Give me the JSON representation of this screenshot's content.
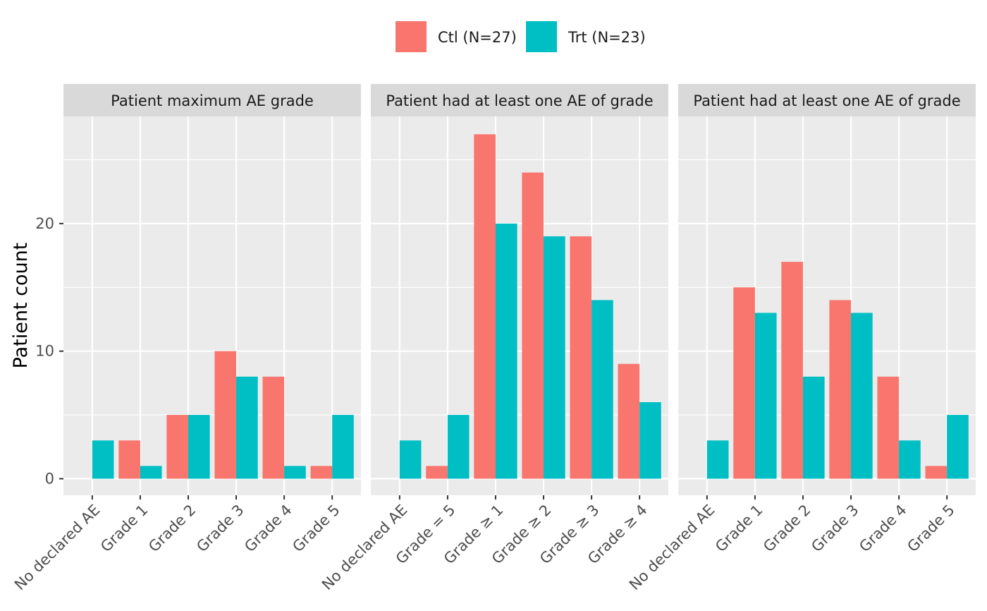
{
  "colors": {
    "ctl": "#F8766D",
    "trt": "#00BFC4",
    "panel_bg": "#EBEBEB",
    "strip_bg": "#D9D9D9",
    "grid": "#FFFFFF"
  },
  "legend": {
    "position": "top",
    "items": [
      "Ctl (N=27)",
      "Trt (N=23)"
    ]
  },
  "chart_data": {
    "type": "bar",
    "ylabel": "Patient count",
    "ylim": [
      -1.3,
      28.4
    ],
    "yticks": [
      0,
      10,
      20
    ],
    "grid": true,
    "series_names": [
      "Ctl (N=27)",
      "Trt (N=23)"
    ],
    "panels": [
      {
        "title": "Patient maximum AE grade",
        "categories": [
          "No declared AE",
          "Grade 1",
          "Grade 2",
          "Grade 3",
          "Grade 4",
          "Grade 5"
        ],
        "series": [
          {
            "name": "Ctl (N=27)",
            "values": [
              0,
              3,
              5,
              10,
              8,
              1
            ]
          },
          {
            "name": "Trt (N=23)",
            "values": [
              3,
              1,
              5,
              8,
              1,
              5
            ]
          }
        ]
      },
      {
        "title": "Patient had at least one AE of grade",
        "categories": [
          "No declared AE",
          "Grade = 5",
          "Grade ≥ 1",
          "Grade ≥ 2",
          "Grade ≥ 3",
          "Grade ≥ 4"
        ],
        "series": [
          {
            "name": "Ctl (N=27)",
            "values": [
              0,
              1,
              27,
              24,
              19,
              9
            ]
          },
          {
            "name": "Trt (N=23)",
            "values": [
              3,
              5,
              20,
              19,
              14,
              6
            ]
          }
        ]
      },
      {
        "title": "Patient had at least one AE of grade",
        "categories": [
          "No declared AE",
          "Grade 1",
          "Grade 2",
          "Grade 3",
          "Grade 4",
          "Grade 5"
        ],
        "series": [
          {
            "name": "Ctl (N=27)",
            "values": [
              0,
              15,
              17,
              14,
              8,
              1
            ]
          },
          {
            "name": "Trt (N=23)",
            "values": [
              3,
              13,
              8,
              13,
              3,
              5
            ]
          }
        ]
      }
    ]
  }
}
